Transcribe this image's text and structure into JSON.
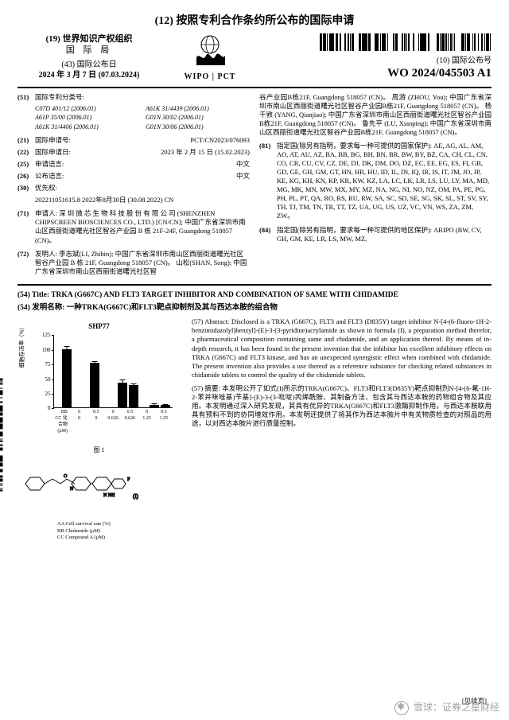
{
  "mainTitle": "(12) 按照专利合作条约所公布的国际申请",
  "header": {
    "org1": "(19) 世界知识产权组织",
    "org2": "国 际 局",
    "pubDateLabel": "(43) 国际公布日",
    "pubDate": "2024 年 3 月 7 日 (07.03.2024)",
    "wipoText": "WIPO | PCT",
    "pubNoLabel": "(10) 国际公布号",
    "pubNo": "WO 2024/045503 A1"
  },
  "leftFields": {
    "f51": {
      "code": "(51)",
      "label": "国际专利分类号:"
    },
    "ipc": [
      "C07D 401/12 (2006.01)",
      "A61K 31/4439 (2006.01)",
      "A61P 35/00 (2006.01)",
      "G01N 30/02 (2006.01)",
      "A61K 31/4406 (2006.01)",
      "G01N 30/06 (2006.01)"
    ],
    "f21": {
      "code": "(21)",
      "label": "国际申请号:",
      "val": "PCT/CN2023/076093"
    },
    "f22": {
      "code": "(22)",
      "label": "国际申请日:",
      "val": "2023 年 2 月 15 日 (15.02.2023)"
    },
    "f25": {
      "code": "(25)",
      "label": "申请语言:",
      "val": "中文"
    },
    "f26": {
      "code": "(26)",
      "label": "公布语言:",
      "val": "中文"
    },
    "f30": {
      "code": "(30)",
      "label": "优先权:",
      "line": "202211051615.8     2022年8月30日 (30.08.2022)   CN"
    },
    "f71": {
      "code": "(71)",
      "label": "申请人:",
      "text": "深 圳 微 芯 生 物 科 技 股 份 有 限 公 司 (SHENZHEN CHIPSCREEN BIOSCIENCES CO., LTD.) [CN/CN]; 中国广东省深圳市南山区西丽街道曙光社区智谷产业园 B 栋 21F-24F, Guangdong 518057 (CN)。"
    },
    "f72": {
      "code": "(72)",
      "label": "发明人:",
      "text": "李志斌(LI, Zhibin); 中国广东省深圳市南山区西丽街道曙光社区智谷产业园 B 栋 21F, Guangdong 518057 (CN)。 山松(SHAN, Song); 中国广东省深圳市南山区西丽街道曙光社区智"
    }
  },
  "rightFields": {
    "inventorsCont": "谷产业园B栋21F, Guangdong 518057 (CN)。 周游 (ZHOU, You); 中国广东省深圳市南山区西丽街道曙光社区智谷产业园B栋21F, Guangdong 518057 (CN)。 杨千敩 (YANG, Qianjiao); 中国广东省深圳市南山区西丽街道曙光社区智谷产业园B栋21F, Guangdong 518057 (CN)。 鲁先平 (LU, Xianping); 中国广东省深圳市南山区西丽街道曙光社区智谷产业园B栋21F, Guangdong 518057 (CN)。",
    "f81": {
      "code": "(81)",
      "label": "指定国(除另有指明，要求每一种可提供的国家保护):",
      "text": "AE, AG, AL, AM, AO, AT, AU, AZ, BA, BB, BG, BH, BN, BR, BW, BY, BZ, CA, CH, CL, CN, CO, CR, CU, CV, CZ, DE, DJ, DK, DM, DO, DZ, EC, EE, EG, ES, FI, GB, GD, GE, GH, GM, GT, HN, HR, HU, ID, IL, IN, IQ, IR, IS, IT, JM, JO, JP, KE, KG, KH, KN, KP, KR, KW, KZ, LA, LC, LK, LR, LS, LU, LY, MA, MD, MG, MK, MN, MW, MX, MY, MZ, NA, NG, NI, NO, NZ, OM, PA, PE, PG, PH, PL, PT, QA, RO, RS, RU, RW, SA, SC, SD, SE, SG, SK, SL, ST, SV, SY, TH, TJ, TM, TN, TR, TT, TZ, UA, UG, US, UZ, VC, VN, WS, ZA, ZM, ZW。"
    },
    "f84": {
      "code": "(84)",
      "label": "指定国(除另有指明，要求每一种可提供的地区保护):",
      "text": "ARIPO (BW, CV, GH, GM, KE, LR, LS, MW, MZ,"
    }
  },
  "title54en": "(54) Title: TRKA (G667C) AND FLT3 TARGET INHIBITOR AND COMBINATION OF SAME WITH CHIDAMIDE",
  "title54cn": "(54) 发明名称: 一种TRKA(G667C)和FLT3靶点抑制剂及其与西达本胺的组合物",
  "abstractEn": "(57) Abstract: Disclosed is a TRKA (G667C), FLT3 and FLT3 (D835Y) target inhibitor N-[4-(6-fluoro-1H-2-benzimidazolyl)benzyl]-(E)-3-(3-pyridine)acrylamide as shown in formula (I), a preparation method therefor, a pharmaceutical composition containing same and chidamide, and an application thereof. By means of in-depth research, it has been found in the present invention that the inhibitor has excellent inhibitory effects on TRKA (G667C) and FLT3 kinase, and has an unexpected synergistic effect when combined with chidamide. The present invention also provides a use thereof as a reference substance for checking related substances in chidamide tablets to control the quality of the chidamide tablets.",
  "abstractCn": "(57) 摘要: 本发明公开了如式(I)所示的TRKA(G667C)、FLT3和FLT3(D835Y)靶点抑制剂N-[4-(6-氟-1H-2-苯并咪唑基)苄基]-(E)-3-(3-吡啶)丙烯酰胺、其制备方法、包含其与西达本胺的药物组合物及其应用。本发明通过深入研究发现，其具有优异的TRKA(G667C)和FLT3激酶抑制作用，与西达本胺联用具有预料不到的协同增效作用。本发明还提供了将其作为西达本胺片中有关物质检查的对照品的用途，以对西达本胺片进行质量控制。",
  "chart": {
    "title": "SHP77",
    "ylabel": "细胞存活率（%）",
    "ymax": 125,
    "yticks": [
      0,
      25,
      50,
      75,
      100,
      125
    ],
    "groups": [
      {
        "x": 10,
        "bars": [
          {
            "h": 100,
            "err": 5
          }
        ]
      },
      {
        "x": 45,
        "bars": [
          {
            "h": 76,
            "err": 4
          }
        ]
      },
      {
        "x": 80,
        "bars": [
          {
            "h": 42,
            "err": 6
          },
          {
            "h": 38,
            "err": 4
          }
        ]
      },
      {
        "x": 120,
        "bars": [
          {
            "h": 5,
            "err": 3
          },
          {
            "h": 4,
            "err": 2
          }
        ]
      }
    ],
    "xRows": [
      {
        "lbl": "BB",
        "cells": [
          "0",
          "0.5",
          "0",
          "0.5",
          "0",
          "0.5"
        ]
      },
      {
        "lbl": "CC 化合物(μM)",
        "cells": [
          "0",
          "0",
          "0.626",
          "0.626",
          "1.25",
          "1.25"
        ]
      }
    ],
    "figCaption": "图 1",
    "legend": [
      "AA Cell survival rate (%)",
      "BB Chidamide (μM)",
      "CC Compound A (μM)"
    ]
  },
  "sideText": "WO 2024/045503 A1",
  "footerRight": "[见续页]",
  "watermark": "雪球：证券之星财经"
}
